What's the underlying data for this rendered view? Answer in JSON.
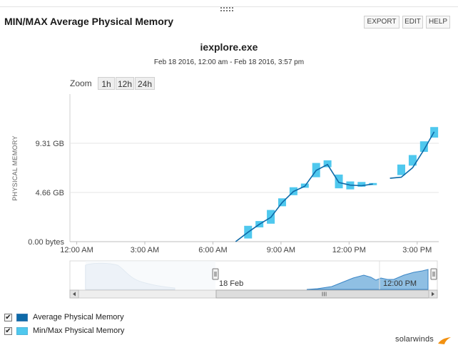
{
  "widget": {
    "title": "MIN/MAX Average Physical Memory",
    "buttons": {
      "export": "EXPORT",
      "edit": "EDIT",
      "help": "HELP"
    }
  },
  "chart_header": {
    "title": "iexplore.exe",
    "subtitle": "Feb 18 2016, 12:00 am - Feb 18 2016, 3:57 pm"
  },
  "zoom": {
    "label": "Zoom",
    "options": [
      "1h",
      "12h",
      "24h"
    ]
  },
  "colors": {
    "average": "#0e6aa8",
    "minmax": "#4fc8ee",
    "navigator_fill": "#8fbfe3",
    "navigator_line": "#3b86c6"
  },
  "chart_data": {
    "type": "line",
    "title": "iexplore.exe",
    "subtitle": "Feb 18 2016, 12:00 am - Feb 18 2016, 3:57 pm",
    "ylabel": "PHYSICAL MEMORY",
    "xlabel": "",
    "xlim_hours": [
      -0.3,
      15.95
    ],
    "ylim_gb": [
      0,
      13.97
    ],
    "y_ticks": [
      {
        "value": 0,
        "label": "0.00 bytes"
      },
      {
        "value": 4.66,
        "label": "4.66 GB"
      },
      {
        "value": 9.31,
        "label": "9.31 GB"
      }
    ],
    "x_ticks": [
      {
        "value": 0,
        "label": "12:00 AM"
      },
      {
        "value": 3,
        "label": "3:00 AM"
      },
      {
        "value": 6,
        "label": "6:00 AM"
      },
      {
        "value": 9,
        "label": "9:00 AM"
      },
      {
        "value": 12,
        "label": "12:00 PM"
      },
      {
        "value": 15,
        "label": "3:00 PM"
      }
    ],
    "series": [
      {
        "name": "Average Physical Memory",
        "kind": "line",
        "segments": [
          [
            [
              7.0,
              0.0
            ],
            [
              7.55,
              0.9
            ],
            [
              8.05,
              1.65
            ],
            [
              8.55,
              2.3
            ],
            [
              9.05,
              3.7
            ],
            [
              9.55,
              4.75
            ],
            [
              10.05,
              5.25
            ],
            [
              10.55,
              6.75
            ],
            [
              11.05,
              7.3
            ],
            [
              11.55,
              5.6
            ],
            [
              12.05,
              5.35
            ],
            [
              12.55,
              5.3
            ],
            [
              13.05,
              5.45
            ]
          ],
          [
            [
              13.8,
              6.0
            ],
            [
              14.3,
              6.1
            ],
            [
              14.8,
              7.0
            ],
            [
              15.3,
              8.7
            ],
            [
              15.75,
              10.4
            ]
          ]
        ]
      },
      {
        "name": "Min/Max Physical Memory",
        "kind": "range",
        "ranges": [
          [
            7.55,
            0.3,
            1.5
          ],
          [
            8.05,
            1.35,
            1.95
          ],
          [
            8.55,
            1.7,
            3.0
          ],
          [
            9.05,
            3.35,
            4.1
          ],
          [
            9.55,
            4.4,
            5.15
          ],
          [
            10.05,
            5.1,
            5.5
          ],
          [
            10.55,
            6.1,
            7.45
          ],
          [
            11.05,
            7.05,
            7.7
          ],
          [
            11.55,
            5.05,
            6.35
          ],
          [
            12.05,
            4.95,
            5.7
          ],
          [
            12.55,
            5.2,
            5.65
          ],
          [
            13.05,
            5.35,
            5.55
          ],
          [
            14.3,
            6.3,
            7.3
          ],
          [
            14.8,
            7.2,
            8.2
          ],
          [
            15.3,
            8.5,
            9.5
          ],
          [
            15.75,
            9.85,
            10.85
          ]
        ]
      }
    ],
    "navigator": {
      "date_label": "18 Feb",
      "time_label": "12:00 PM"
    },
    "legend": [
      {
        "label": "Average Physical Memory",
        "checked": true
      },
      {
        "label": "Min/Max Physical Memory",
        "checked": true
      }
    ]
  },
  "branding": {
    "logo_text": "solarwinds"
  }
}
